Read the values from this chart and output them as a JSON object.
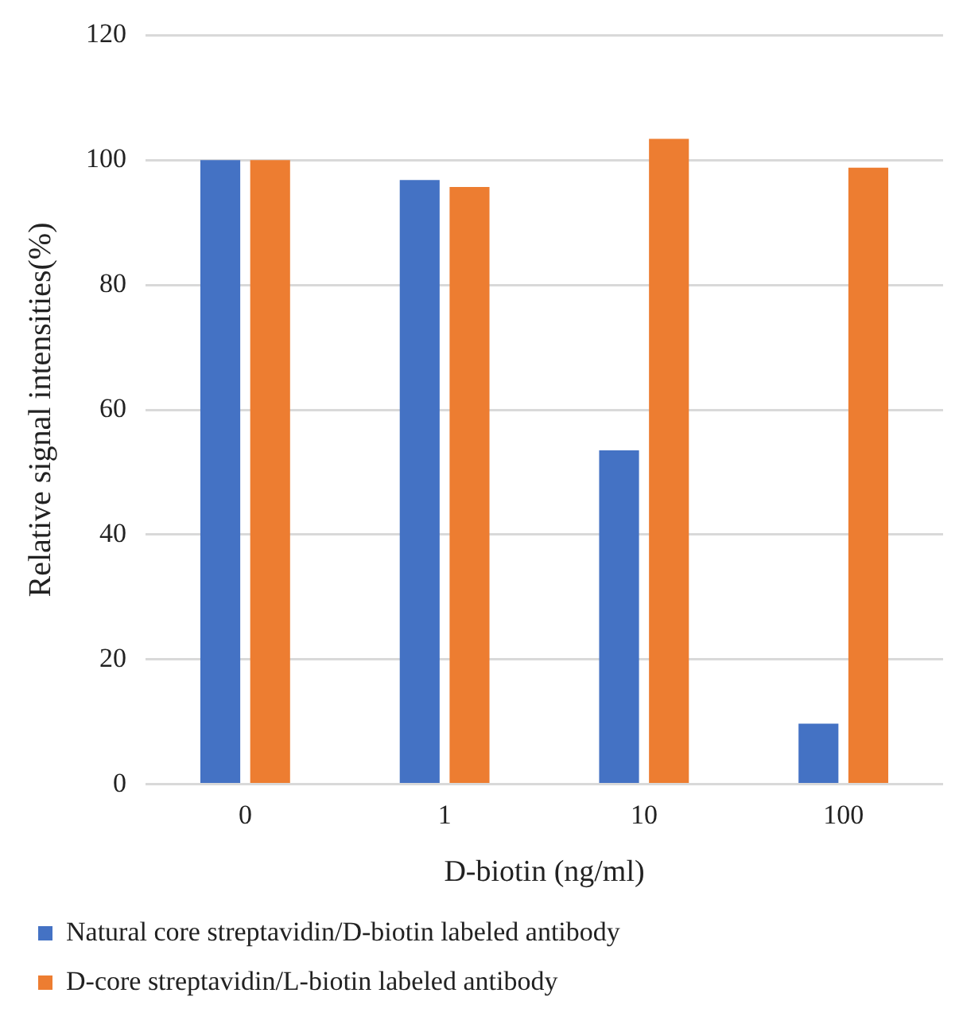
{
  "chart_data": {
    "type": "bar",
    "xlabel": "D-biotin (ng/ml)",
    "ylabel": "Relative signal intensities(%)",
    "categories": [
      "0",
      "1",
      "10",
      "100"
    ],
    "series": [
      {
        "name": "Natural core streptavidin/D-biotin labeled antibody",
        "color": "#4472c4",
        "values": [
          100,
          96.8,
          53.5,
          9.7
        ]
      },
      {
        "name": "D-core streptavidin/L-biotin labeled antibody",
        "color": "#ed7d31",
        "values": [
          100,
          95.7,
          103.4,
          98.8
        ]
      }
    ],
    "ylim": [
      0,
      120
    ],
    "yticks": [
      0,
      20,
      40,
      60,
      80,
      100,
      120
    ],
    "grid": "y",
    "legend": "bottom"
  }
}
